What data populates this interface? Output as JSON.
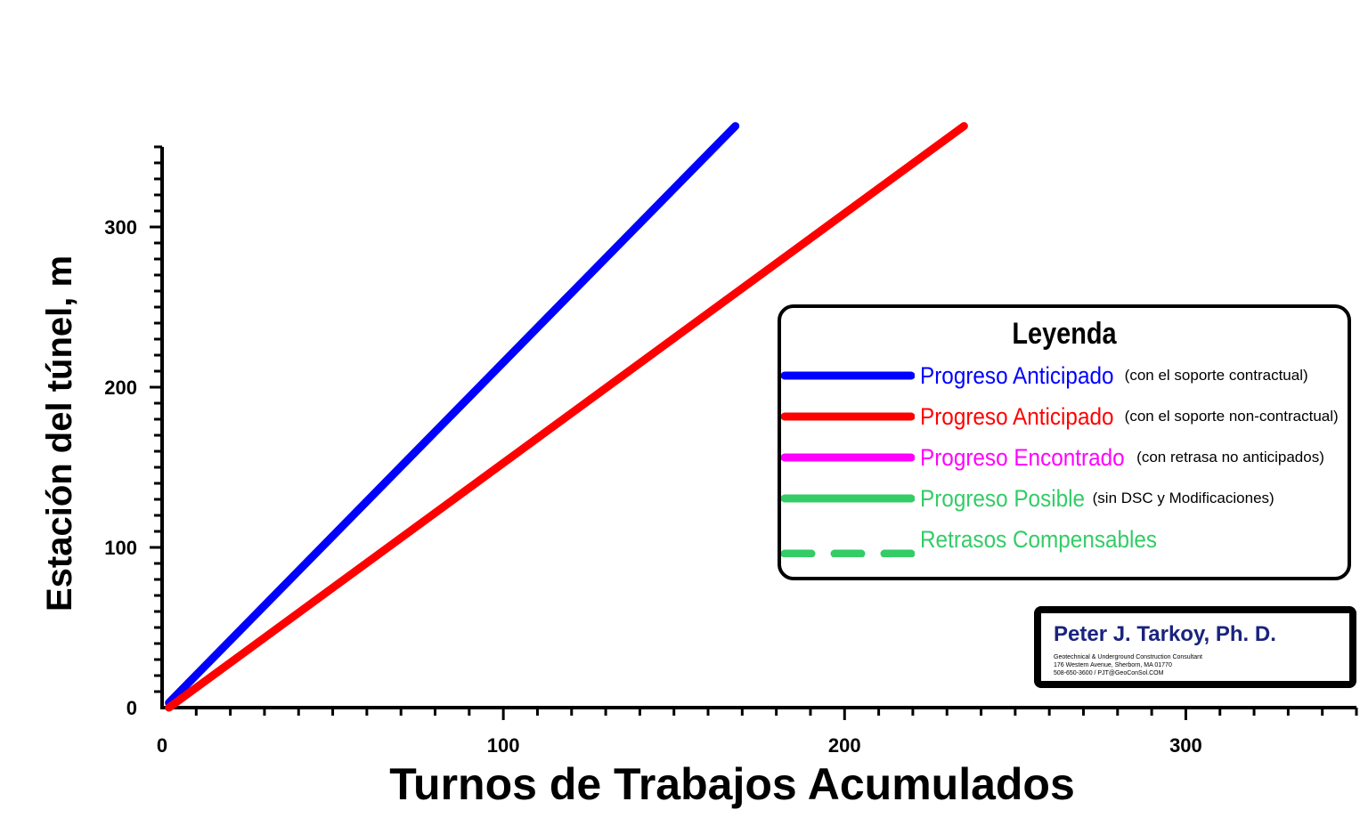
{
  "chart_data": {
    "type": "line",
    "xlabel": "Turnos de Trabajos Acumulados",
    "ylabel": "Estación del túnel, m",
    "xlim": [
      0,
      350
    ],
    "ylim": [
      0,
      350
    ],
    "x_ticks": [
      "0",
      "100",
      "200",
      "300"
    ],
    "y_ticks": [
      "0",
      "100",
      "200",
      "300"
    ],
    "x_major_step": 100,
    "x_minor_step": 10,
    "y_major_step": 100,
    "y_minor_step": 10,
    "grid": false,
    "series": [
      {
        "color": "#0000ff",
        "points": [
          [
            2,
            3
          ],
          [
            168,
            363
          ]
        ]
      },
      {
        "color": "#ff0000",
        "points": [
          [
            2,
            0
          ],
          [
            235,
            363
          ]
        ]
      }
    ]
  },
  "legend": {
    "title": "Leyenda",
    "items": [
      {
        "main": "Progreso Anticipado",
        "note": "(con el soporte contractual)",
        "color": "#0000ff",
        "dashed": false
      },
      {
        "main": "Progreso Anticipado",
        "note": "(con el soporte non-contractual)",
        "color": "#ff0000",
        "dashed": false
      },
      {
        "main": "Progreso Encontrado",
        "note": "(con retrasa no anticipados)",
        "color": "#ff00ff",
        "dashed": false
      },
      {
        "main": "Progreso Posible",
        "note": "(sin DSC y Modificaciones)",
        "color": "#33cc66",
        "dashed": false
      },
      {
        "main": "Retrasos Compensables",
        "note": "",
        "color": "#33cc66",
        "dashed": true
      }
    ]
  },
  "credit": {
    "name": "Peter J. Tarkoy, Ph. D.",
    "line1": "Geotechnical & Underground Construction Consultant",
    "line2": "176 Western Avenue, Sherborn, MA 01770",
    "line3": "508-650-3600 / PJT@GeoConSol.COM"
  }
}
